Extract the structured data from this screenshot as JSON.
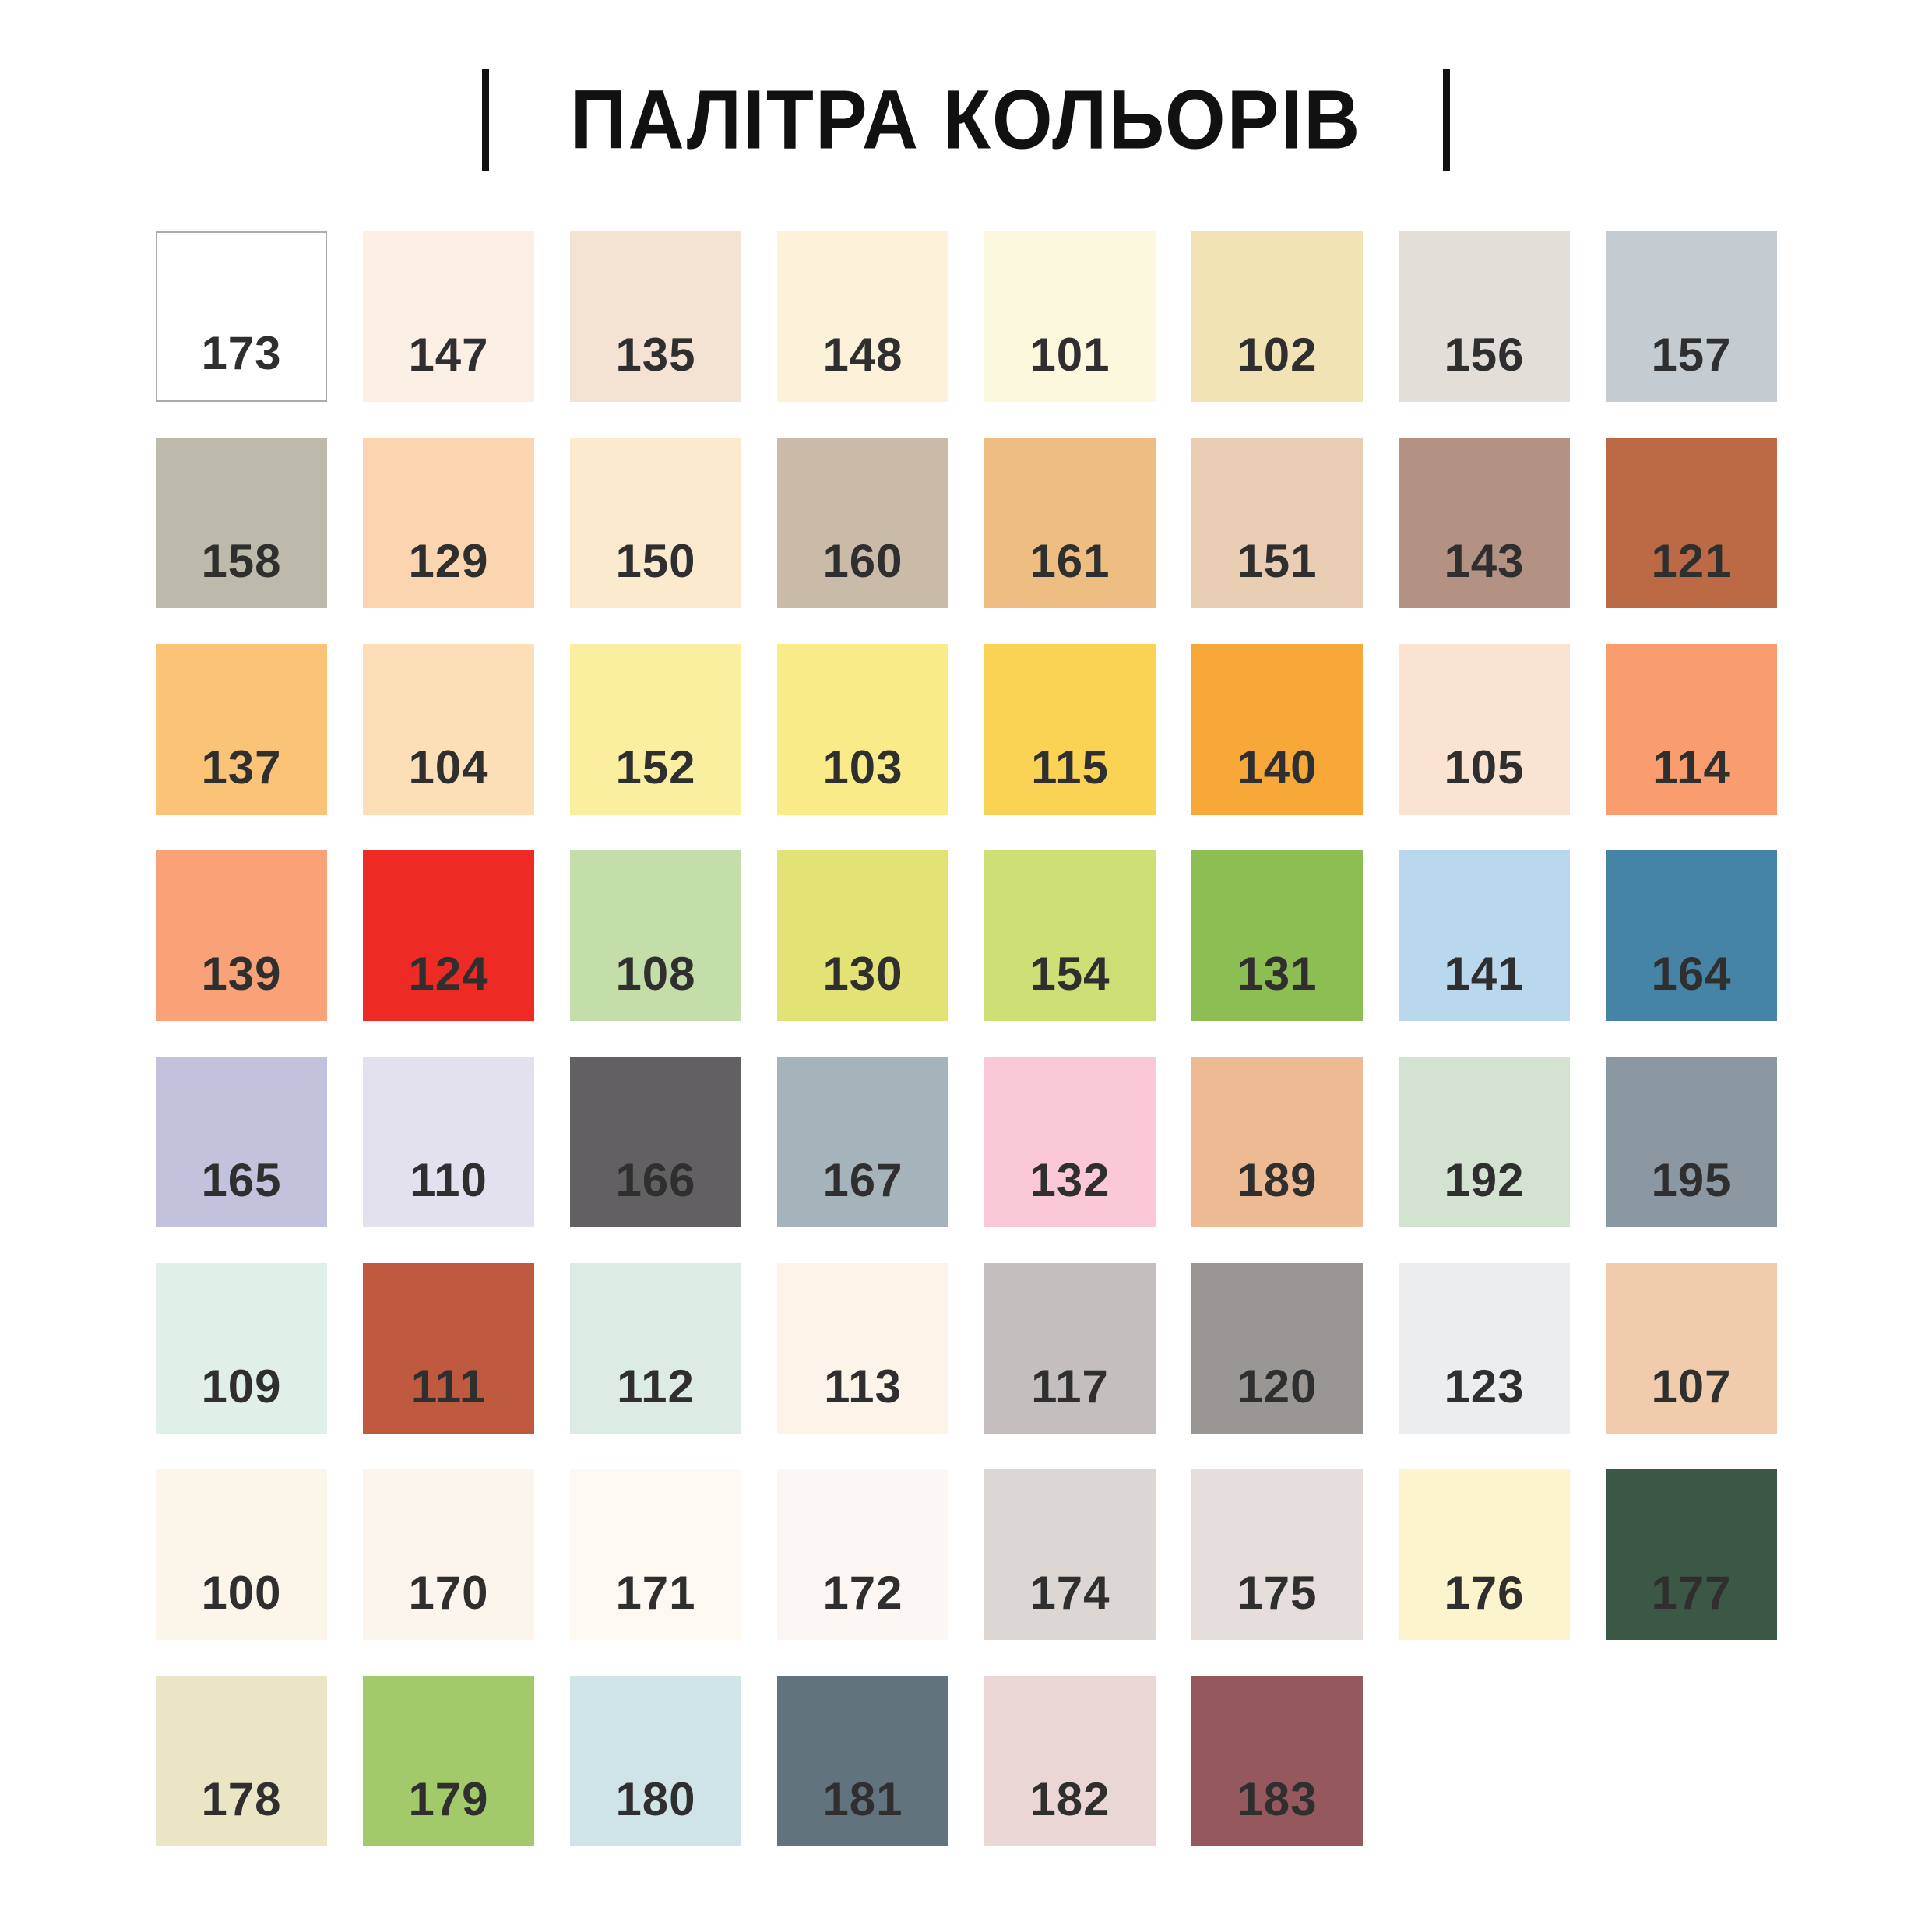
{
  "title": {
    "text": "ПАЛІТРА КОЛЬОРІВ"
  },
  "palette": {
    "background": "#ffffff",
    "label_color": "#2f2f2f",
    "white_swatch_border": "#ababab",
    "columns": 8,
    "swatches": [
      {
        "number": "173",
        "color": "#ffffff",
        "bordered": true
      },
      {
        "number": "147",
        "color": "#fcefe3",
        "bordered": false
      },
      {
        "number": "135",
        "color": "#f4e2d2",
        "bordered": false
      },
      {
        "number": "148",
        "color": "#fbf2d9",
        "bordered": false
      },
      {
        "number": "101",
        "color": "#fcf8de",
        "bordered": false
      },
      {
        "number": "102",
        "color": "#f2e3b5",
        "bordered": false
      },
      {
        "number": "156",
        "color": "#e3dfd8",
        "bordered": false
      },
      {
        "number": "157",
        "color": "#c5ccd1",
        "bordered": false
      },
      {
        "number": "158",
        "color": "#bdbaab",
        "bordered": false
      },
      {
        "number": "129",
        "color": "#fad5af",
        "bordered": false
      },
      {
        "number": "150",
        "color": "#fceacf",
        "bordered": false
      },
      {
        "number": "160",
        "color": "#cabba8",
        "bordered": false
      },
      {
        "number": "161",
        "color": "#eebd81",
        "bordered": false
      },
      {
        "number": "151",
        "color": "#eaceb3",
        "bordered": false
      },
      {
        "number": "143",
        "color": "#b49283",
        "bordered": false
      },
      {
        "number": "121",
        "color": "#bb6a45",
        "bordered": false
      },
      {
        "number": "137",
        "color": "#fac375",
        "bordered": false
      },
      {
        "number": "104",
        "color": "#fcdeb7",
        "bordered": false
      },
      {
        "number": "152",
        "color": "#faef9f",
        "bordered": false
      },
      {
        "number": "103",
        "color": "#f9eb88",
        "bordered": false
      },
      {
        "number": "115",
        "color": "#fad355",
        "bordered": false
      },
      {
        "number": "140",
        "color": "#f8a839",
        "bordered": false
      },
      {
        "number": "105",
        "color": "#fbe3d2",
        "bordered": false
      },
      {
        "number": "114",
        "color": "#f99d6e",
        "bordered": false
      },
      {
        "number": "139",
        "color": "#f9a277",
        "bordered": false
      },
      {
        "number": "124",
        "color": "#ed2a23",
        "bordered": false
      },
      {
        "number": "108",
        "color": "#c3dea8",
        "bordered": false
      },
      {
        "number": "130",
        "color": "#e3e275",
        "bordered": false
      },
      {
        "number": "154",
        "color": "#cedf76",
        "bordered": false
      },
      {
        "number": "131",
        "color": "#8cbe54",
        "bordered": false
      },
      {
        "number": "141",
        "color": "#b9d7ed",
        "bordered": false
      },
      {
        "number": "164",
        "color": "#4583a7",
        "bordered": false
      },
      {
        "number": "165",
        "color": "#c2c2dd",
        "bordered": false
      },
      {
        "number": "110",
        "color": "#e4e1ef",
        "bordered": false
      },
      {
        "number": "166",
        "color": "#626062",
        "bordered": false
      },
      {
        "number": "167",
        "color": "#a5b3ba",
        "bordered": false
      },
      {
        "number": "132",
        "color": "#fac8d6",
        "bordered": false
      },
      {
        "number": "189",
        "color": "#eeba94",
        "bordered": false
      },
      {
        "number": "192",
        "color": "#d4e2d1",
        "bordered": false
      },
      {
        "number": "195",
        "color": "#8b98a1",
        "bordered": false
      },
      {
        "number": "109",
        "color": "#e1efe9",
        "bordered": false
      },
      {
        "number": "111",
        "color": "#bf5940",
        "bordered": false
      },
      {
        "number": "112",
        "color": "#dcece5",
        "bordered": false
      },
      {
        "number": "113",
        "color": "#fcf3e9",
        "bordered": false
      },
      {
        "number": "117",
        "color": "#c5bebe",
        "bordered": false
      },
      {
        "number": "120",
        "color": "#999694",
        "bordered": false
      },
      {
        "number": "123",
        "color": "#ecedef",
        "bordered": false
      },
      {
        "number": "107",
        "color": "#f1ccac",
        "bordered": false
      },
      {
        "number": "100",
        "color": "#fcf6ea",
        "bordered": false
      },
      {
        "number": "170",
        "color": "#fcf5ed",
        "bordered": false
      },
      {
        "number": "171",
        "color": "#fdf8f1",
        "bordered": false
      },
      {
        "number": "172",
        "color": "#fcf7f2",
        "bordered": false
      },
      {
        "number": "174",
        "color": "#dcd7d3",
        "bordered": false
      },
      {
        "number": "175",
        "color": "#e5deda",
        "bordered": false
      },
      {
        "number": "176",
        "color": "#fbf4cd",
        "bordered": false
      },
      {
        "number": "177",
        "color": "#3b5847",
        "bordered": false
      },
      {
        "number": "178",
        "color": "#e9e5c5",
        "bordered": false
      },
      {
        "number": "179",
        "color": "#a2ca6a",
        "bordered": false
      },
      {
        "number": "180",
        "color": "#cee4e6",
        "bordered": false
      },
      {
        "number": "181",
        "color": "#61737d",
        "bordered": false
      },
      {
        "number": "182",
        "color": "#ebd6d6",
        "bordered": false
      },
      {
        "number": "183",
        "color": "#95585d",
        "bordered": false
      }
    ]
  }
}
